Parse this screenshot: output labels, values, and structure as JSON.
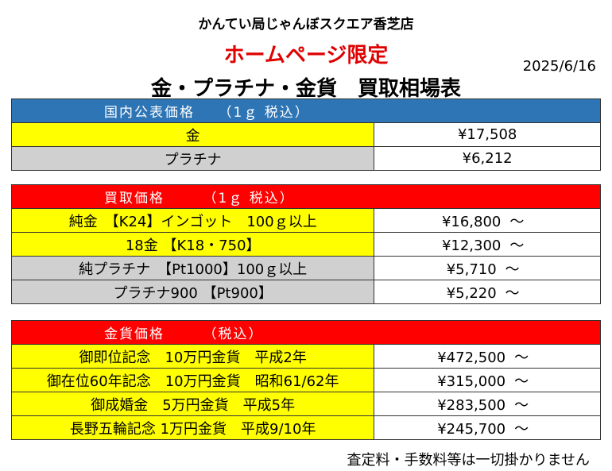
{
  "header": {
    "store_name": "かんてい局じゃんぼスクエア香芝店",
    "limited": "ホームページ限定",
    "date": "2025/6/16",
    "title": "金・プラチナ・金貨　買取相場表"
  },
  "domestic": {
    "heading": "国内公表価格　　（1ｇ 税込）",
    "rows": [
      {
        "name": "金",
        "price": "¥17,508"
      },
      {
        "name": "プラチナ",
        "price": "¥6,212"
      }
    ]
  },
  "buy": {
    "heading": "買取価格　　　（1ｇ 税込）",
    "tilde": "～",
    "rows": [
      {
        "name": "純金　【K24】インゴット　100ｇ以上",
        "price": "¥16,800"
      },
      {
        "name": "18金 【K18・750】",
        "price": "¥12,300"
      },
      {
        "name": "純プラチナ　【Pt1000】100ｇ以上",
        "price": "¥5,710"
      },
      {
        "name": "プラチナ900 【Pt900】",
        "price": "¥5,220"
      }
    ]
  },
  "coins": {
    "heading": "金貨価格　　　（税込）",
    "tilde": "～",
    "rows": [
      {
        "name": "御即位記念　10万円金貨　平成2年",
        "price": "¥472,500"
      },
      {
        "name": "御在位60年記念　10万円金貨　昭和61/62年",
        "price": "¥315,000"
      },
      {
        "name": "御成婚金　5万円金貨　平成5年",
        "price": "¥283,500"
      },
      {
        "name": "長野五輪記念 1万円金貨　平成9/10年",
        "price": "¥245,700"
      }
    ]
  },
  "footer": {
    "notice": "査定料・手数料等は一切掛かりません"
  },
  "colors": {
    "blue_header": "#2e75b6",
    "red_header": "#ff0000",
    "yellow_cell": "#ffff00",
    "gray_cell": "#d0d0d0",
    "limited_text": "#e00000"
  }
}
